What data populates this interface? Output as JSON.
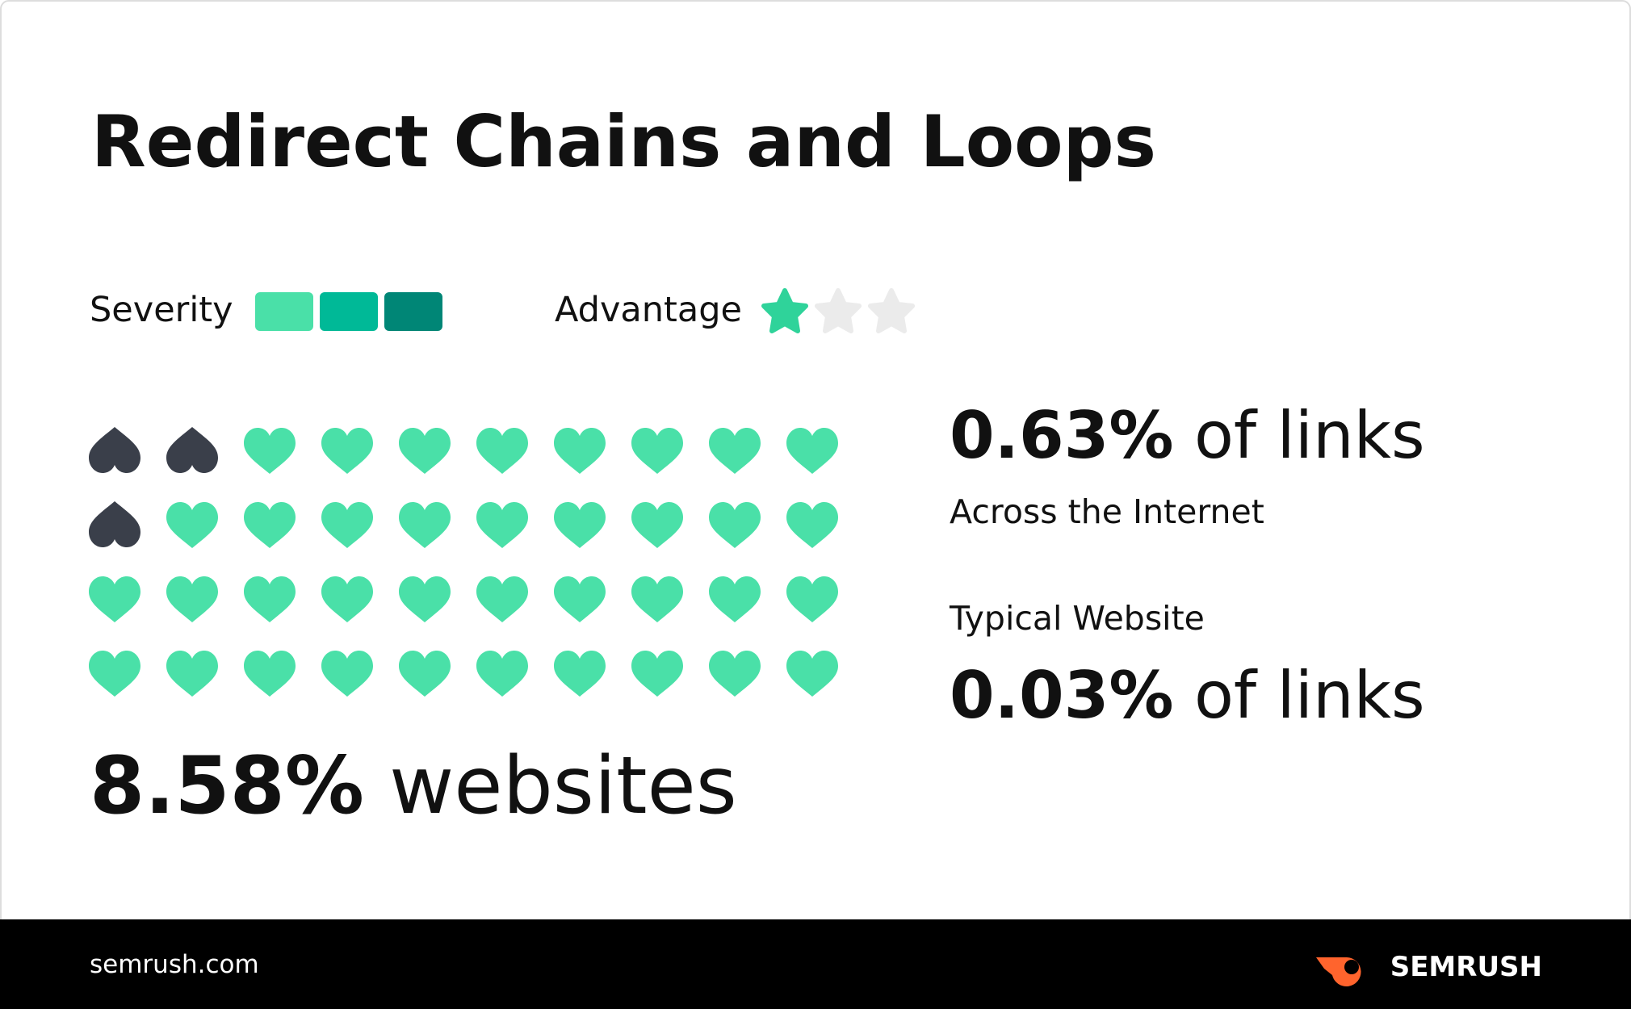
{
  "header": {
    "title": "Redirect Chains and Loops"
  },
  "legend": {
    "severity": "Severity",
    "advantage": "Advantage"
  },
  "websites": {
    "value": "8.58%",
    "unit": "websites"
  },
  "internet": {
    "value": "0.63%",
    "unit": "of links",
    "label": "Across the Internet"
  },
  "typical": {
    "label": "Typical Website",
    "value": "0.03%",
    "unit": "of links"
  },
  "footer": {
    "site": "semrush.com",
    "brand": "SEMRUSH"
  }
}
